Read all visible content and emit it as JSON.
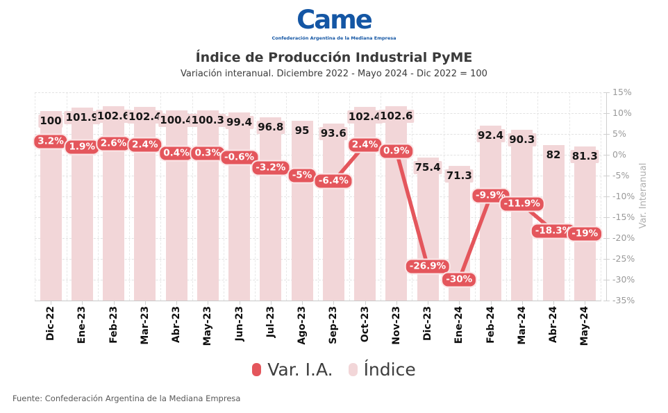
{
  "logo": {
    "wordmark": "Came",
    "subtext": "Confederación Argentina de la Mediana Empresa",
    "color": "#1456a4"
  },
  "header": {
    "title": "Índice de Producción Industrial PyME",
    "subtitle": "Variación interanual. Diciembre 2022 - Mayo 2024 - Dic 2022 = 100"
  },
  "chart_data": {
    "type": "bar+line",
    "categories": [
      "Dic-22",
      "Ene-23",
      "Feb-23",
      "Mar-23",
      "Abr-23",
      "May-23",
      "Jun-23",
      "Jul-23",
      "Ago-23",
      "Sep-23",
      "Oct-23",
      "Nov-23",
      "Dic-23",
      "Ene-24",
      "Feb-24",
      "Mar-24",
      "Abr-24",
      "May-24"
    ],
    "series": [
      {
        "name": "Índice",
        "type": "bar",
        "axis": "hidden-left",
        "color": "#f2d6d8",
        "values": [
          100,
          101.9,
          102.6,
          102.4,
          100.4,
          100.3,
          99.4,
          96.8,
          95,
          93.6,
          102.4,
          102.6,
          75.4,
          71.3,
          92.4,
          90.3,
          82,
          81.3
        ],
        "labels": [
          "100",
          "101.9",
          "102.6",
          "102.4",
          "100.4",
          "100.3",
          "99.4",
          "96.8",
          "95",
          "93.6",
          "102.4",
          "102.6",
          "75.4",
          "71.3",
          "92.4",
          "90.3",
          "82",
          "81.3"
        ]
      },
      {
        "name": "Var. I.A.",
        "type": "line",
        "axis": "right",
        "color": "#e4565c",
        "values": [
          3.2,
          1.9,
          2.6,
          2.4,
          0.4,
          0.3,
          -0.6,
          -3.2,
          -5,
          -6.4,
          2.4,
          0.9,
          -26.9,
          -30,
          -9.9,
          -11.9,
          -18.3,
          -19
        ],
        "labels": [
          "3.2%",
          "1.9%",
          "2.6%",
          "2.4%",
          "0.4%",
          "0.3%",
          "-0.6%",
          "-3.2%",
          "-5%",
          "-6.4%",
          "2.4%",
          "0.9%",
          "-26.9%",
          "-30%",
          "-9.9%",
          "-11.9%",
          "-18.3%",
          "-19%"
        ]
      }
    ],
    "right_axis": {
      "label": "Var. Interanual",
      "min": -35,
      "max": 15,
      "step": 5,
      "tick_labels": [
        "15%",
        "10%",
        "5%",
        "0%",
        "-5%",
        "-10%",
        "-15%",
        "-20%",
        "-25%",
        "-30%",
        "-35%"
      ]
    },
    "hidden_bar_axis": {
      "min": 0,
      "max": 110
    },
    "grid": true,
    "legend_position": "bottom"
  },
  "legend": {
    "items": [
      {
        "label": "Var. I.A.",
        "color": "#e4565c"
      },
      {
        "label": "Índice",
        "color": "#f2d6d8"
      }
    ]
  },
  "footer": {
    "source": "Fuente: Confederación Argentina de la Mediana Empresa"
  }
}
